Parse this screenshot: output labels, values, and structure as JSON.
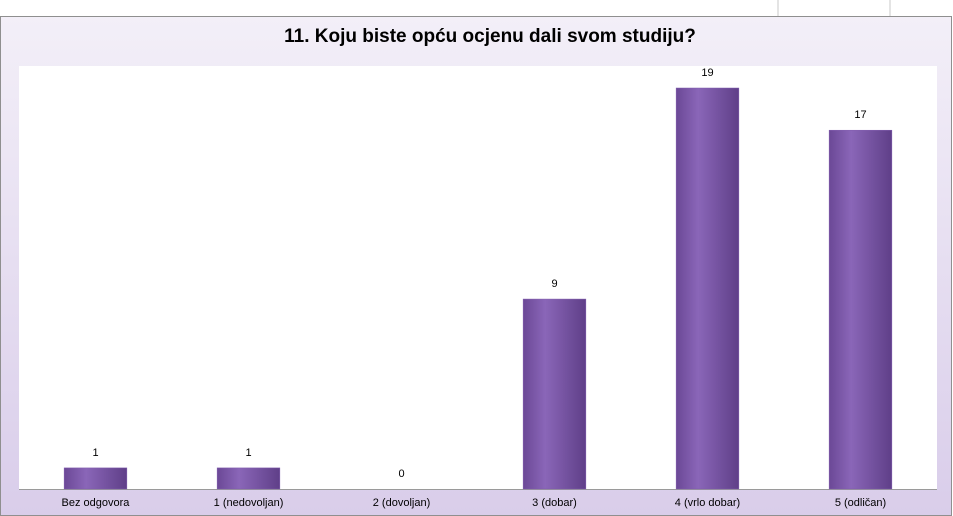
{
  "chart_data": {
    "type": "bar",
    "title": "11. Koju biste opću ocjenu dali svom studiju?",
    "categories": [
      "Bez odgovora",
      "1 (nedovoljan)",
      "2 (dovoljan)",
      "3 (dobar)",
      "4 (vrlo dobar)",
      "5 (odličan)"
    ],
    "values": [
      1,
      1,
      0,
      9,
      19,
      17
    ],
    "color": "#7f5aad"
  }
}
